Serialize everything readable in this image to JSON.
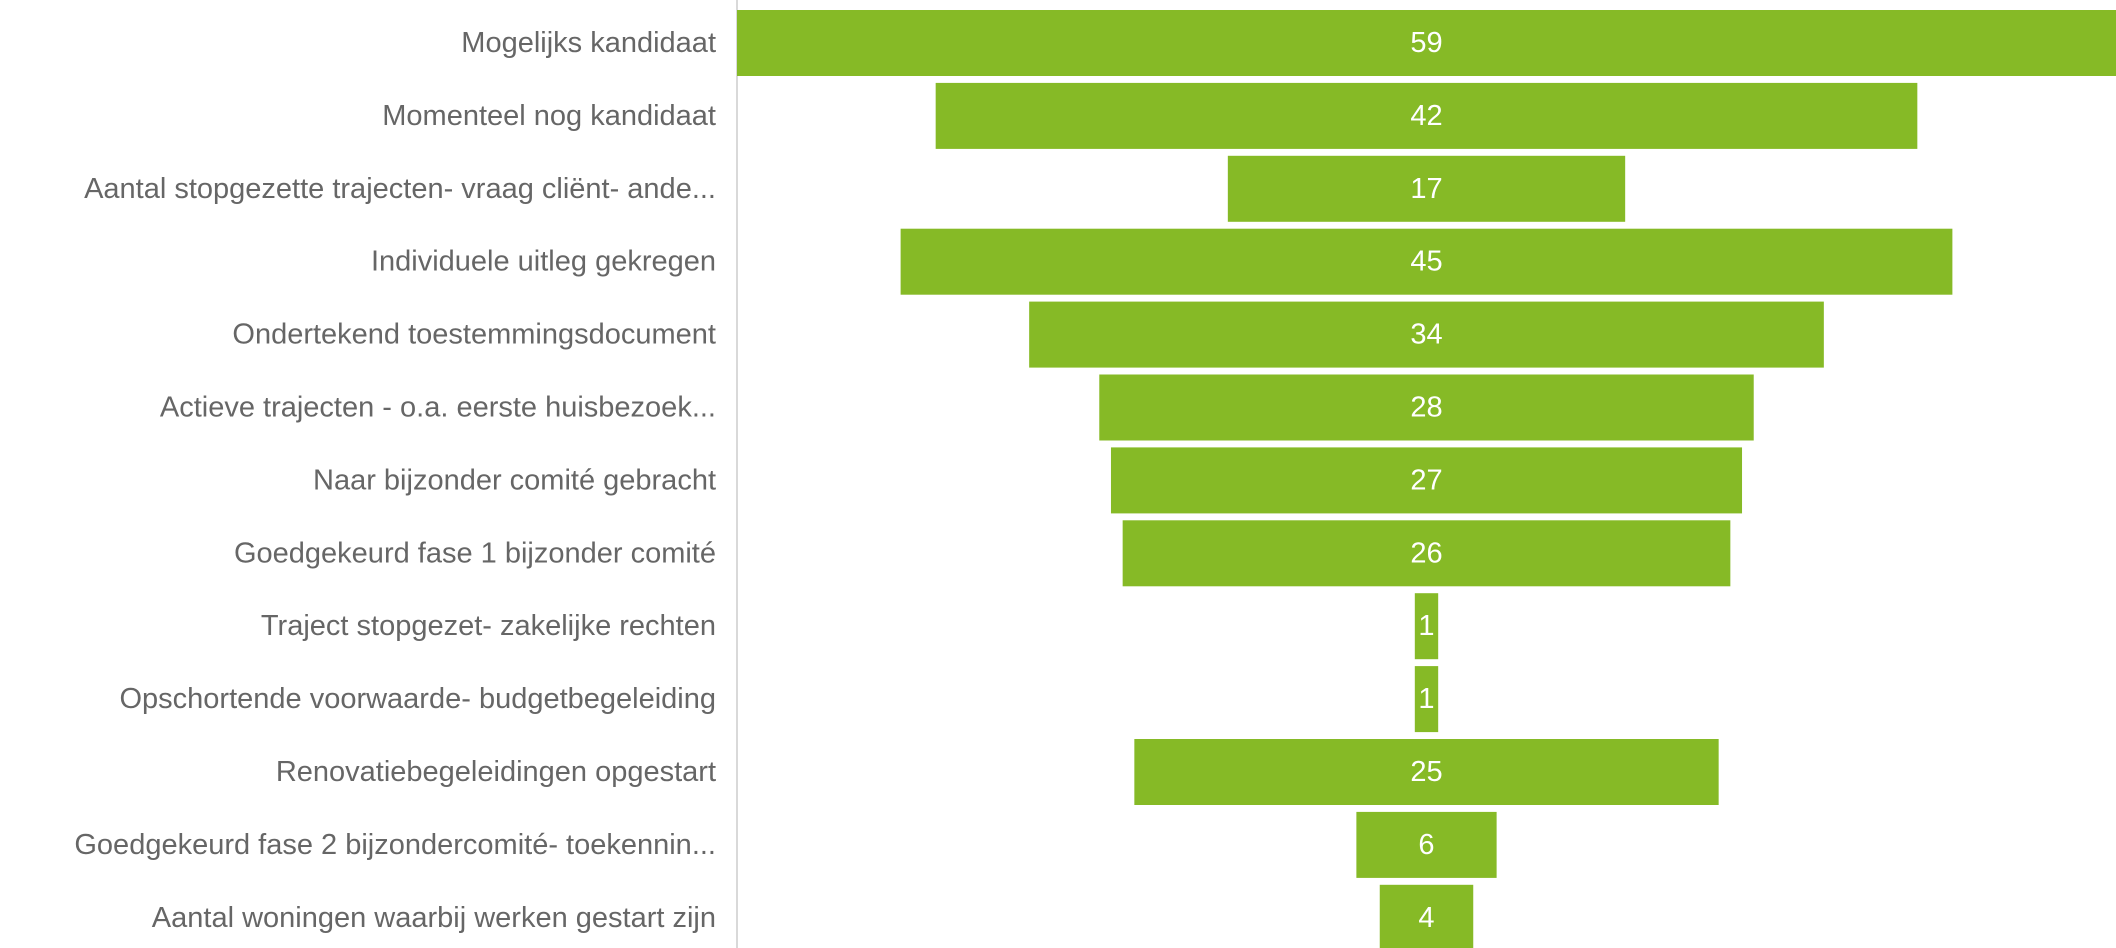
{
  "colors": {
    "bar": "#86BA26",
    "label_text": "#666666",
    "value_text": "#ffffff",
    "axis_line": "#D9D9D9",
    "background": "#ffffff"
  },
  "chart_data": {
    "type": "funnel",
    "categories": [
      "Mogelijks kandidaat",
      "Momenteel nog kandidaat",
      "Aantal stopgezette trajecten- vraag cliënt- ande...",
      "Individuele uitleg gekregen",
      "Ondertekend toestemmingsdocument",
      "Actieve trajecten - o.a. eerste huisbezoek...",
      "Naar bijzonder comité gebracht",
      "Goedgekeurd fase 1 bijzonder comité",
      "Traject stopgezet- zakelijke rechten",
      "Opschortende voorwaarde- budgetbegeleiding",
      "Renovatiebegeleidingen opgestart",
      "Goedgekeurd fase 2 bijzondercomité- toekennin...",
      "Aantal woningen waarbij werken gestart zijn"
    ],
    "values": [
      59,
      42,
      17,
      45,
      34,
      28,
      27,
      26,
      1,
      1,
      25,
      6,
      4
    ],
    "data_labels": [
      "59",
      "42",
      "17",
      "45",
      "34",
      "28",
      "27",
      "26",
      "1",
      "1",
      "25",
      "6",
      "4"
    ],
    "max": 59,
    "legend": "none",
    "grid": false
  }
}
